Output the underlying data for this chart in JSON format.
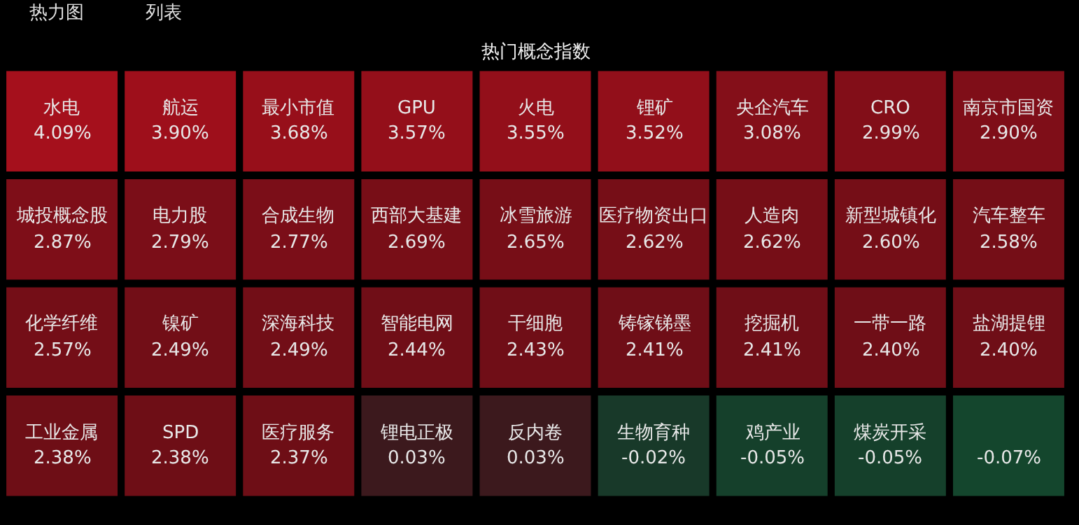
{
  "chart_data": {
    "type": "other",
    "title": "热门概念指数",
    "annotations": [
      "热力图",
      "列表"
    ],
    "categories": [
      "水电",
      "航运",
      "最小市值",
      "GPU",
      "火电",
      "锂矿",
      "央企汽车",
      "CRO",
      "南京市国资",
      "城投概念股",
      "电力股",
      "合成生物",
      "西部大基建",
      "冰雪旅游",
      "医疗物资出口",
      "人造肉",
      "新型城镇化",
      "汽车整车",
      "化学纤维",
      "镍矿",
      "深海科技",
      "智能电网",
      "干细胞",
      "铸镓锑墨",
      "挖掘机",
      "一带一路",
      "盐湖提锂",
      "工业金属",
      "SPD",
      "医疗服务",
      "锂电正极",
      "反内卷",
      "生物育种",
      "鸡产业",
      "煤炭开采",
      null
    ],
    "values": [
      4.09,
      3.9,
      3.68,
      3.57,
      3.55,
      3.52,
      3.08,
      2.99,
      2.9,
      2.87,
      2.79,
      2.77,
      2.69,
      2.65,
      2.62,
      2.62,
      2.6,
      2.58,
      2.57,
      2.49,
      2.49,
      2.44,
      2.43,
      2.41,
      2.41,
      2.4,
      2.4,
      2.38,
      2.38,
      2.37,
      0.03,
      0.03,
      -0.02,
      -0.05,
      -0.05,
      -0.07
    ],
    "value_labels": [
      "4.09%",
      "3.90%",
      "3.68%",
      "3.57%",
      "3.55%",
      "3.52%",
      "3.08%",
      "2.99%",
      "2.90%",
      "2.87%",
      "2.79%",
      "2.77%",
      "2.69%",
      "2.65%",
      "2.62%",
      "2.62%",
      "2.60%",
      "2.58%",
      "2.57%",
      "2.49%",
      "2.49%",
      "2.44%",
      "2.43%",
      "2.41%",
      "2.41%",
      "2.40%",
      "2.40%",
      "2.38%",
      "2.38%",
      "2.37%",
      "0.03%",
      "0.03%",
      "-0.02%",
      "-0.05%",
      "-0.05%",
      "-0.07%"
    ]
  }
}
